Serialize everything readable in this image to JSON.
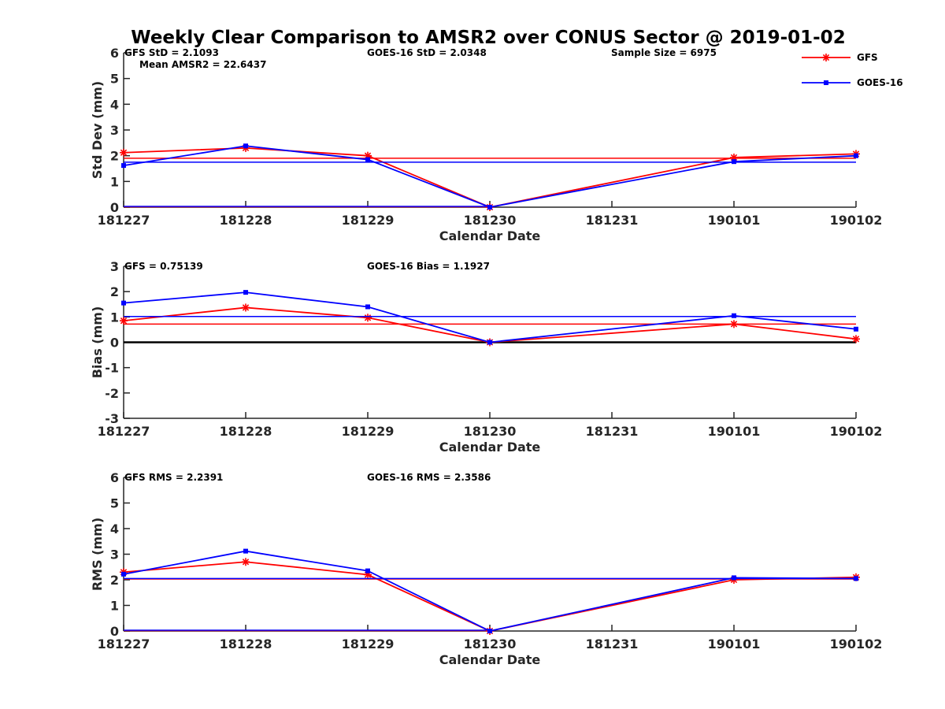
{
  "figure_title": "Weekly Clear Comparison to AMSR2 over CONUS Sector @ 2019-01-02",
  "colors": {
    "GFS": "#ff0000",
    "GOES-16": "#0000ff",
    "axis": "#262626",
    "zero_line": "#000000"
  },
  "legend": [
    {
      "name": "GFS",
      "marker": "asterisk"
    },
    {
      "name": "GOES-16",
      "marker": "square"
    }
  ],
  "chart_data": [
    {
      "type": "line",
      "x": [
        "181227",
        "181228",
        "181229",
        "181230",
        "181231",
        "190101",
        "190102"
      ],
      "xlabel": "Calendar Date",
      "ylabel": "Std Dev (mm)",
      "ylim": [
        0,
        6
      ],
      "yticks": [
        "0",
        "1",
        "2",
        "3",
        "4",
        "5",
        "6"
      ],
      "annotations": [
        {
          "id": "gfs",
          "text": "GFS StD = 2.1093"
        },
        {
          "id": "goes",
          "text": "GOES-16 StD = 2.0348"
        },
        {
          "id": "sample",
          "text": "Sample Size = 6975"
        },
        {
          "id": "mean",
          "text": "Mean AMSR2 = 22.6437"
        }
      ],
      "series": [
        {
          "name": "GFS",
          "values": [
            2.12,
            2.3,
            2.0,
            0.0,
            null,
            1.93,
            2.07
          ],
          "mean": 1.9
        },
        {
          "name": "GOES-16",
          "values": [
            1.62,
            2.38,
            1.85,
            0.0,
            null,
            1.77,
            2.0
          ],
          "mean": 1.75
        }
      ]
    },
    {
      "type": "line",
      "x": [
        "181227",
        "181228",
        "181229",
        "181230",
        "181231",
        "190101",
        "190102"
      ],
      "xlabel": "Calendar Date",
      "ylabel": "Bias (mm)",
      "ylim": [
        -3,
        3
      ],
      "yticks": [
        "-3",
        "-2",
        "-1",
        "0",
        "1",
        "2",
        "3"
      ],
      "zero_line": true,
      "annotations": [
        {
          "id": "gfs",
          "text": "GFS = 0.75139"
        },
        {
          "id": "goes",
          "text": "GOES-16 Bias  = 1.1927"
        }
      ],
      "series": [
        {
          "name": "GFS",
          "values": [
            0.85,
            1.37,
            0.97,
            0.0,
            null,
            0.72,
            0.13
          ],
          "mean": 0.72
        },
        {
          "name": "GOES-16",
          "values": [
            1.55,
            1.97,
            1.4,
            0.0,
            null,
            1.05,
            0.52
          ],
          "mean": 1.02
        }
      ]
    },
    {
      "type": "line",
      "x": [
        "181227",
        "181228",
        "181229",
        "181230",
        "181231",
        "190101",
        "190102"
      ],
      "xlabel": "Calendar Date",
      "ylabel": "RMS (mm)",
      "ylim": [
        0,
        6
      ],
      "yticks": [
        "0",
        "1",
        "2",
        "3",
        "4",
        "5",
        "6"
      ],
      "annotations": [
        {
          "id": "gfs",
          "text": "GFS RMS = 2.2391"
        },
        {
          "id": "goes",
          "text": "GOES-16 RMS = 2.3586"
        }
      ],
      "series": [
        {
          "name": "GFS",
          "values": [
            2.3,
            2.7,
            2.2,
            0.0,
            null,
            2.0,
            2.1
          ],
          "mean": 2.03
        },
        {
          "name": "GOES-16",
          "values": [
            2.22,
            3.12,
            2.35,
            0.0,
            null,
            2.08,
            2.05
          ],
          "mean": 2.05
        }
      ]
    }
  ]
}
